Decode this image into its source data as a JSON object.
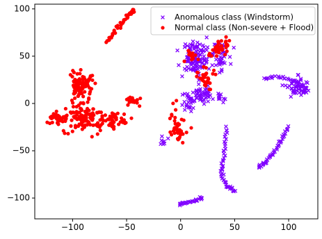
{
  "chart_data": {
    "type": "scatter",
    "title": "",
    "xlabel": "",
    "ylabel": "",
    "xlim": [
      -135,
      127
    ],
    "ylim": [
      -122,
      105
    ],
    "xticks": [
      -100,
      -50,
      0,
      50,
      100
    ],
    "xtick_labels": [
      "−100",
      "−50",
      "0",
      "50",
      "100"
    ],
    "yticks": [
      -100,
      -50,
      0,
      50,
      100
    ],
    "ytick_labels": [
      "−100",
      "−50",
      "0",
      "50",
      "100"
    ],
    "grid": false,
    "legend_position": "top-right",
    "series": [
      {
        "name": "Anomalous class (Windstorm)",
        "marker": "x",
        "color": "#8000ff",
        "clusters": [
          {
            "kind": "blob",
            "cx": 14,
            "cy": 48,
            "rx": 13,
            "ry": 18,
            "n": 120
          },
          {
            "kind": "blob",
            "cx": 36,
            "cy": 50,
            "rx": 9,
            "ry": 14,
            "n": 45
          },
          {
            "kind": "blob",
            "cx": 20,
            "cy": 10,
            "rx": 10,
            "ry": 9,
            "n": 45
          },
          {
            "kind": "blob",
            "cx": 8,
            "cy": 3,
            "rx": 6,
            "ry": 12,
            "n": 28
          },
          {
            "kind": "blob",
            "cx": 37,
            "cy": 5,
            "rx": 4,
            "ry": 4,
            "n": 10
          },
          {
            "kind": "blob",
            "cx": -16,
            "cy": -40,
            "rx": 4,
            "ry": 4,
            "n": 8
          },
          {
            "kind": "blob",
            "cx": 108,
            "cy": 17,
            "rx": 11,
            "ry": 10,
            "n": 60
          },
          {
            "kind": "curve",
            "points": [
              [
                77,
                26
              ],
              [
                85,
                27
              ],
              [
                93,
                28
              ],
              [
                103,
                25
              ],
              [
                112,
                20
              ],
              [
                118,
                14
              ]
            ],
            "n": 30
          },
          {
            "kind": "curve",
            "points": [
              [
                -2,
                -107
              ],
              [
                5,
                -105
              ],
              [
                12,
                -103
              ],
              [
                20,
                -100
              ]
            ],
            "n": 30
          },
          {
            "kind": "curve",
            "points": [
              [
                42,
                -25
              ],
              [
                41,
                -45
              ],
              [
                39,
                -65
              ],
              [
                38,
                -78
              ],
              [
                44,
                -88
              ],
              [
                50,
                -93
              ]
            ],
            "n": 50
          },
          {
            "kind": "curve",
            "points": [
              [
                72,
                -68
              ],
              [
                78,
                -62
              ],
              [
                84,
                -55
              ],
              [
                90,
                -46
              ],
              [
                95,
                -35
              ],
              [
                100,
                -25
              ]
            ],
            "n": 45
          }
        ]
      },
      {
        "name": "Normal class (Non-severe + Flood)",
        "marker": "o",
        "color": "#ff0000",
        "clusters": [
          {
            "kind": "curve",
            "points": [
              [
                -68,
                65
              ],
              [
                -63,
                73
              ],
              [
                -57,
                82
              ],
              [
                -51,
                90
              ],
              [
                -46,
                96
              ],
              [
                -43,
                99
              ]
            ],
            "n": 40
          },
          {
            "kind": "blob",
            "cx": -93,
            "cy": 20,
            "rx": 12,
            "ry": 16,
            "n": 90
          },
          {
            "kind": "blob",
            "cx": -88,
            "cy": -15,
            "rx": 18,
            "ry": 14,
            "n": 110
          },
          {
            "kind": "blob",
            "cx": -112,
            "cy": -16,
            "rx": 13,
            "ry": 6,
            "n": 40
          },
          {
            "kind": "blob",
            "cx": -63,
            "cy": -18,
            "rx": 12,
            "ry": 10,
            "n": 45
          },
          {
            "kind": "blob",
            "cx": -45,
            "cy": 3,
            "rx": 6,
            "ry": 5,
            "n": 20
          },
          {
            "kind": "blob",
            "cx": 36,
            "cy": 58,
            "rx": 8,
            "ry": 12,
            "n": 40
          },
          {
            "kind": "blob",
            "cx": 22,
            "cy": 28,
            "rx": 10,
            "ry": 12,
            "n": 30
          },
          {
            "kind": "blob",
            "cx": -3,
            "cy": -25,
            "rx": 8,
            "ry": 18,
            "n": 45
          },
          {
            "kind": "blob",
            "cx": 10,
            "cy": 50,
            "rx": 6,
            "ry": 10,
            "n": 12
          }
        ]
      }
    ]
  }
}
